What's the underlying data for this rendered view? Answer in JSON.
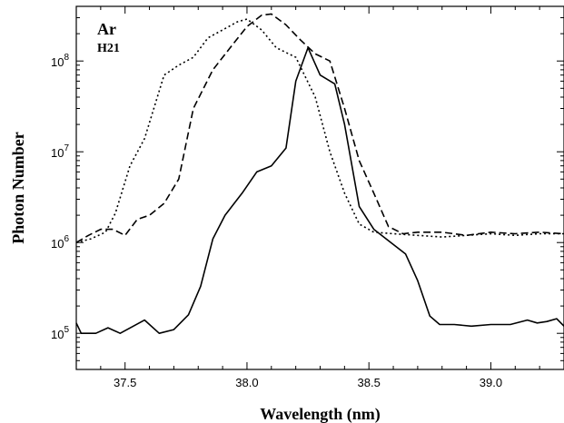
{
  "chart_data": {
    "type": "line",
    "xlabel": "Wavelength (nm)",
    "ylabel": "Photon Number",
    "xlim": [
      37.3,
      39.3
    ],
    "ylim": [
      40000,
      400000000
    ],
    "yscale": "log",
    "grid": false,
    "x_ticks": [
      {
        "value": 37.5,
        "label": "37.5"
      },
      {
        "value": 38.0,
        "label": "38.0"
      },
      {
        "value": 38.5,
        "label": "38.5"
      },
      {
        "value": 39.0,
        "label": "39.0"
      }
    ],
    "y_ticks": [
      {
        "value": 100000,
        "base": "10",
        "exp": "5"
      },
      {
        "value": 1000000,
        "base": "10",
        "exp": "6"
      },
      {
        "value": 10000000,
        "base": "10",
        "exp": "7"
      },
      {
        "value": 100000000,
        "base": "10",
        "exp": "8"
      }
    ],
    "annotations": [
      "Ar",
      "H21"
    ],
    "series": [
      {
        "style": "solid",
        "color": "#000000",
        "x": [
          37.3,
          37.32,
          37.38,
          37.43,
          37.48,
          37.58,
          37.64,
          37.7,
          37.76,
          37.81,
          37.86,
          37.91,
          37.98,
          38.04,
          38.1,
          38.16,
          38.2,
          38.25,
          38.3,
          38.36,
          38.4,
          38.46,
          38.52,
          38.59,
          38.65,
          38.7,
          38.75,
          38.79,
          38.85,
          38.92,
          39.0,
          39.08,
          39.15,
          39.19,
          39.23,
          39.27,
          39.3
        ],
        "y": [
          130000,
          100000,
          100000,
          115000,
          100000,
          140000,
          100000,
          110000,
          160000,
          330000,
          1100000,
          2000000,
          3500000,
          6000000,
          7000000,
          11000000,
          60000000,
          140000000,
          70000000,
          56000000,
          20000000,
          2500000,
          1400000,
          1000000,
          750000,
          380000,
          155000,
          125000,
          125000,
          120000,
          125000,
          125000,
          140000,
          130000,
          135000,
          145000,
          120000
        ]
      },
      {
        "style": "dotted",
        "color": "#000000",
        "x": [
          37.3,
          37.36,
          37.42,
          37.46,
          37.52,
          37.58,
          37.66,
          37.72,
          37.78,
          37.84,
          37.9,
          37.96,
          38.0,
          38.06,
          38.12,
          38.2,
          38.28,
          38.34,
          38.4,
          38.46,
          38.52,
          38.6,
          38.7,
          38.8,
          38.9,
          39.0,
          39.1,
          39.2,
          39.3
        ],
        "y": [
          1000000,
          1100000,
          1300000,
          2100000,
          7000000,
          14000000,
          70000000,
          90000000,
          110000000,
          180000000,
          220000000,
          270000000,
          290000000,
          220000000,
          140000000,
          110000000,
          40000000,
          10000000,
          3500000,
          1600000,
          1300000,
          1250000,
          1200000,
          1150000,
          1200000,
          1250000,
          1200000,
          1250000,
          1250000
        ]
      },
      {
        "style": "dashed",
        "color": "#000000",
        "x": [
          37.3,
          37.35,
          37.4,
          37.45,
          37.5,
          37.55,
          37.6,
          37.66,
          37.72,
          37.78,
          37.86,
          37.94,
          38.0,
          38.06,
          38.1,
          38.16,
          38.22,
          38.28,
          38.34,
          38.4,
          38.46,
          38.52,
          38.58,
          38.64,
          38.7,
          38.8,
          38.9,
          39.0,
          39.1,
          39.2,
          39.3
        ],
        "y": [
          1000000,
          1200000,
          1400000,
          1400000,
          1200000,
          1800000,
          2000000,
          2700000,
          5000000,
          30000000,
          80000000,
          150000000,
          240000000,
          320000000,
          330000000,
          250000000,
          170000000,
          120000000,
          100000000,
          30000000,
          8000000,
          3500000,
          1500000,
          1250000,
          1300000,
          1300000,
          1200000,
          1300000,
          1250000,
          1300000,
          1250000
        ]
      }
    ]
  }
}
